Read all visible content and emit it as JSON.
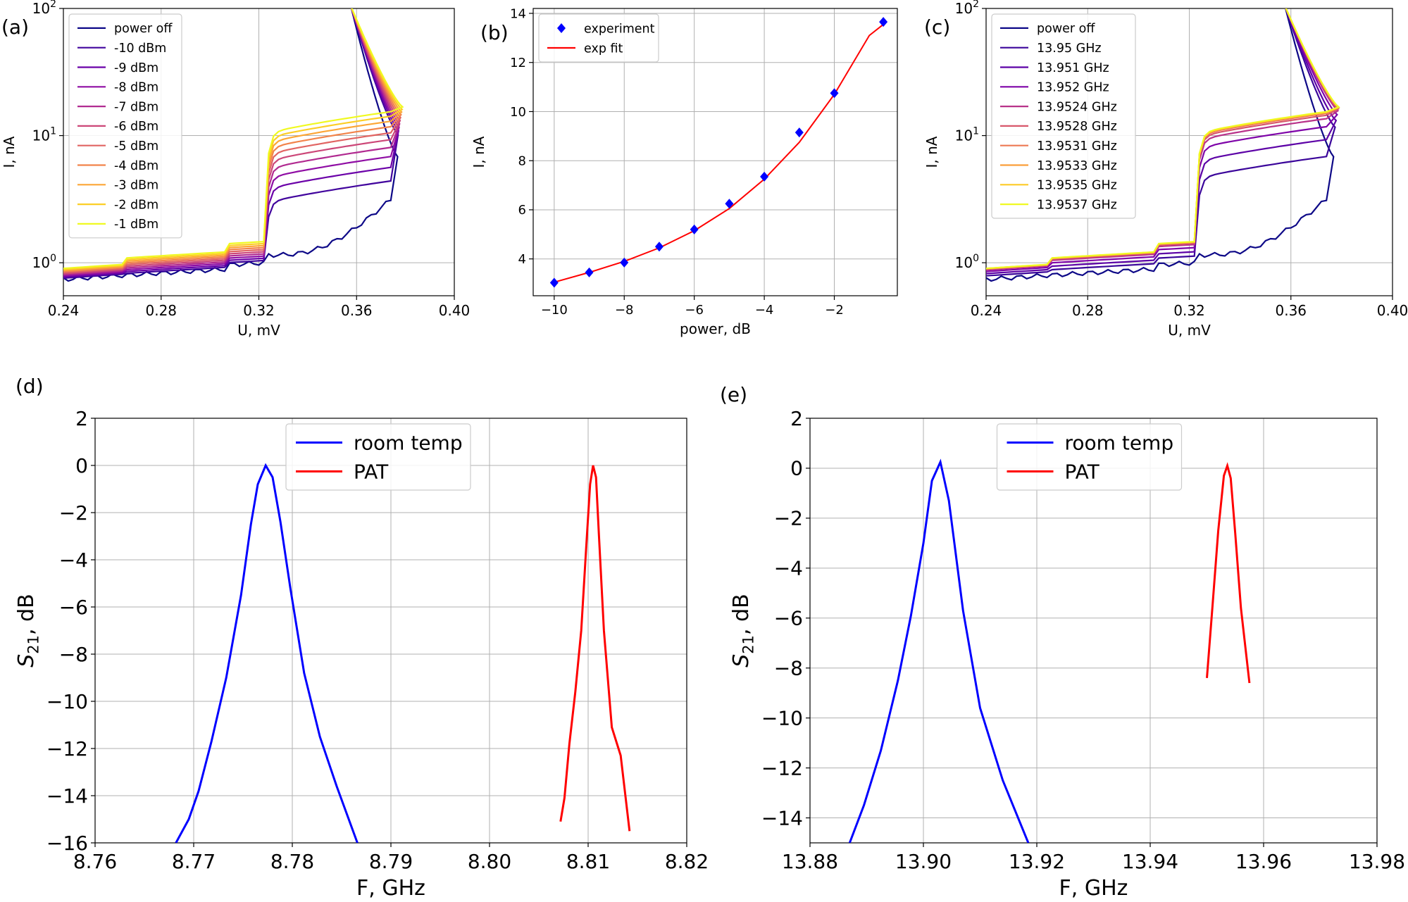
{
  "panel_labels": [
    "(a)",
    "(b)",
    "(c)",
    "(d)",
    "(e)"
  ],
  "colors": {
    "blue": "#0000ff",
    "red": "#ff0000",
    "grid": "#b0b0b0",
    "plasma": [
      "#0d0887",
      "#41049d",
      "#6a00a8",
      "#8f0da4",
      "#b12a90",
      "#cc4778",
      "#e16462",
      "#f2844b",
      "#fca636",
      "#fcce25",
      "#f0f921"
    ],
    "plasma_c": [
      "#0d0887",
      "#3a049a",
      "#5c01a6",
      "#7e03a8",
      "#b83289",
      "#d8576b",
      "#ed7953",
      "#fb9f3a",
      "#fdca26",
      "#f0f921"
    ]
  },
  "chart_data": [
    {
      "id": "a",
      "type": "line",
      "xlabel": "U, mV",
      "ylabel": "I, nA",
      "xlim": [
        0.24,
        0.4
      ],
      "ylim": [
        0.55,
        100
      ],
      "yscale": "log",
      "xticks": [
        "0.24",
        "0.28",
        "0.32",
        "0.36",
        "0.40"
      ],
      "yticks": [
        1,
        10,
        100
      ],
      "ytick_exps": [
        "0",
        "1",
        "2"
      ],
      "legend": "top-left",
      "series": [
        {
          "name": "power off",
          "k": 0
        },
        {
          "name": "-10 dBm",
          "k": 0.1
        },
        {
          "name": "-9 dBm",
          "k": 0.2
        },
        {
          "name": "-8 dBm",
          "k": 0.3
        },
        {
          "name": "-7 dBm",
          "k": 0.4
        },
        {
          "name": "-6 dBm",
          "k": 0.5
        },
        {
          "name": "-5 dBm",
          "k": 0.6
        },
        {
          "name": "-4 dBm",
          "k": 0.7
        },
        {
          "name": "-3 dBm",
          "k": 0.8
        },
        {
          "name": "-2 dBm",
          "k": 0.9
        },
        {
          "name": "-1 dBm",
          "k": 1.0
        }
      ]
    },
    {
      "id": "b",
      "type": "scatter",
      "xlabel": "power, dB",
      "ylabel": "I, nA",
      "xlim": [
        -10.6,
        -0.2
      ],
      "ylim": [
        2.5,
        14.2
      ],
      "xticks": [
        -10,
        -8,
        -6,
        -4,
        -2
      ],
      "yticks": [
        4,
        6,
        8,
        10,
        12,
        14
      ],
      "legend": "top-left",
      "series": [
        {
          "name": "experiment",
          "x": [
            -10,
            -9,
            -8,
            -7,
            -6,
            -5,
            -4,
            -3,
            -2,
            -0.6
          ],
          "y": [
            3.03,
            3.45,
            3.85,
            4.5,
            5.2,
            6.25,
            7.35,
            9.15,
            10.75,
            13.65
          ]
        },
        {
          "name": "exp fit",
          "x": [
            -10,
            -9,
            -8,
            -7,
            -6,
            -5,
            -4,
            -3,
            -2,
            -1,
            -0.6
          ],
          "y": [
            3.05,
            3.45,
            3.9,
            4.45,
            5.15,
            6.05,
            7.25,
            8.75,
            10.7,
            13.1,
            13.55
          ]
        }
      ]
    },
    {
      "id": "c",
      "type": "line",
      "xlabel": "U, mV",
      "ylabel": "I, nA",
      "xlim": [
        0.24,
        0.4
      ],
      "ylim": [
        0.55,
        100
      ],
      "yscale": "log",
      "xticks": [
        "0.24",
        "0.28",
        "0.32",
        "0.36",
        "0.40"
      ],
      "yticks": [
        1,
        10,
        100
      ],
      "ytick_exps": [
        "0",
        "1",
        "2"
      ],
      "legend": "top-left",
      "series": [
        {
          "name": "power off",
          "k": 0
        },
        {
          "name": "13.95 GHz",
          "k": 0.3
        },
        {
          "name": "13.951 GHz",
          "k": 0.5
        },
        {
          "name": "13.952 GHz",
          "k": 0.7
        },
        {
          "name": "13.9524 GHz",
          "k": 0.85
        },
        {
          "name": "13.9528 GHz",
          "k": 0.92
        },
        {
          "name": "13.9531 GHz",
          "k": 0.96
        },
        {
          "name": "13.9533 GHz",
          "k": 0.98
        },
        {
          "name": "13.9535 GHz",
          "k": 0.99
        },
        {
          "name": "13.9537 GHz",
          "k": 1.0
        }
      ]
    },
    {
      "id": "d",
      "type": "line",
      "xlabel": "F, GHz",
      "ylabel": "S21, dB",
      "ylabel_main": "S",
      "ylabel_sub": "21",
      "ylabel_rest": ", dB",
      "xlim": [
        8.76,
        8.82
      ],
      "ylim": [
        -16,
        2
      ],
      "xticks": [
        "8.76",
        "8.77",
        "8.78",
        "8.79",
        "8.80",
        "8.81",
        "8.82"
      ],
      "yticks": [
        2,
        0,
        -2,
        -4,
        -6,
        -8,
        -10,
        -12,
        -14,
        -16
      ],
      "legend": "top-center",
      "series": [
        {
          "name": "room temp",
          "x": [
            8.7682,
            8.7695,
            8.7705,
            8.7718,
            8.7733,
            8.7748,
            8.7758,
            8.7765,
            8.7773,
            8.778,
            8.7788,
            8.7798,
            8.7812,
            8.7828,
            8.7845,
            8.7866
          ],
          "y": [
            -16,
            -15,
            -13.8,
            -11.7,
            -9,
            -5.5,
            -2.5,
            -0.8,
            0,
            -0.5,
            -2.4,
            -5.2,
            -8.8,
            -11.5,
            -13.6,
            -16
          ]
        },
        {
          "name": "PAT",
          "x": [
            8.8072,
            8.8076,
            8.8081,
            8.8087,
            8.8093,
            8.8098,
            8.8102,
            8.8105,
            8.8108,
            8.8111,
            8.8116,
            8.8124,
            8.8133,
            8.8142
          ],
          "y": [
            -15.1,
            -14.1,
            -11.8,
            -9.6,
            -7,
            -3.5,
            -0.8,
            0,
            -0.5,
            -3,
            -7,
            -11.1,
            -12.3,
            -15.5
          ]
        }
      ]
    },
    {
      "id": "e",
      "type": "line",
      "xlabel": "F, GHz",
      "ylabel": "S21, dB",
      "ylabel_main": "S",
      "ylabel_sub": "21",
      "ylabel_rest": ", dB",
      "xlim": [
        13.88,
        13.98
      ],
      "ylim": [
        -15,
        2
      ],
      "xticks": [
        "13.88",
        "13.90",
        "13.92",
        "13.94",
        "13.96",
        "13.98"
      ],
      "yticks": [
        2,
        0,
        -2,
        -4,
        -6,
        -8,
        -10,
        -12,
        -14
      ],
      "legend": "top-center",
      "series": [
        {
          "name": "room temp",
          "x": [
            13.887,
            13.8895,
            13.8925,
            13.8955,
            13.8978,
            13.9,
            13.9015,
            13.903,
            13.9045,
            13.907,
            13.91,
            13.914,
            13.9185
          ],
          "y": [
            -15,
            -13.5,
            -11.3,
            -8.5,
            -5.9,
            -3,
            -0.5,
            0.25,
            -1.3,
            -5.7,
            -9.6,
            -12.5,
            -15
          ]
        },
        {
          "name": "PAT",
          "x": [
            13.95,
            13.951,
            13.952,
            13.953,
            13.9536,
            13.9542,
            13.955,
            13.956,
            13.9575
          ],
          "y": [
            -8.4,
            -5.5,
            -2.5,
            -0.3,
            0.1,
            -0.4,
            -2.6,
            -5.6,
            -8.6
          ]
        }
      ]
    }
  ]
}
